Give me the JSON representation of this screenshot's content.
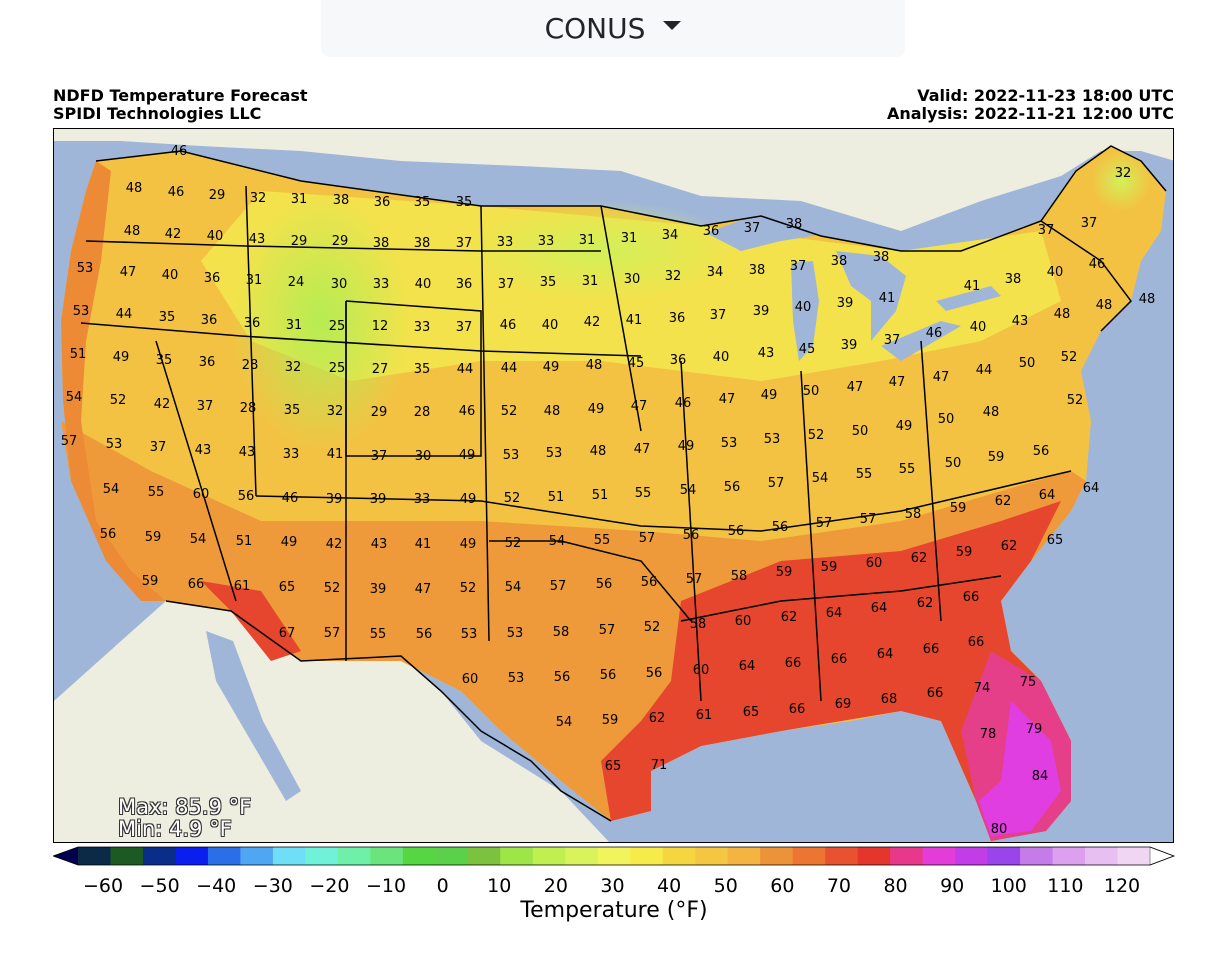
{
  "region_selector": {
    "label": "CONUS"
  },
  "header": {
    "title_line1": "NDFD Temperature Forecast",
    "title_line2": "SPIDI Technologies LLC",
    "valid": "Valid: 2022-11-23 18:00 UTC",
    "analysis": "Analysis: 2022-11-21 12:00 UTC"
  },
  "stats": {
    "max": "Max: 85.9 °F",
    "min": "Min: 4.9 °F"
  },
  "colorbar": {
    "label": "Temperature (°F)",
    "ticks": [
      "−60",
      "−50",
      "−40",
      "−30",
      "−20",
      "−10",
      "0",
      "10",
      "20",
      "30",
      "40",
      "50",
      "60",
      "70",
      "80",
      "90",
      "100",
      "110",
      "120"
    ],
    "colors": [
      "#00004c",
      "#0a2a48",
      "#1d5a23",
      "#0b2d8a",
      "#0a1ef0",
      "#2b6fe8",
      "#4fa6f2",
      "#6fdff8",
      "#6ff2d7",
      "#6ff0a9",
      "#6be47d",
      "#55d642",
      "#5bd04a",
      "#7cc23e",
      "#9ee647",
      "#bff050",
      "#d9f35a",
      "#f2f45e",
      "#f7eb4a",
      "#f5d63f",
      "#f4c641",
      "#f3b442",
      "#ec9238",
      "#ec7531",
      "#e85230",
      "#e5362c",
      "#e8388c",
      "#e43cd8",
      "#c23ce7",
      "#9a44ec",
      "#c67ce8",
      "#dda0ee",
      "#e8bff2",
      "#f1d6f4",
      "#ffffff"
    ]
  },
  "map": {
    "temperature_labels": [
      [
        "46",
        178,
        150
      ],
      [
        "48",
        133,
        187
      ],
      [
        "46",
        175,
        191
      ],
      [
        "29",
        216,
        194
      ],
      [
        "32",
        257,
        197
      ],
      [
        "31",
        298,
        198
      ],
      [
        "38",
        340,
        199
      ],
      [
        "36",
        381,
        201
      ],
      [
        "35",
        421,
        201
      ],
      [
        "35",
        463,
        201
      ],
      [
        "48",
        131,
        230
      ],
      [
        "42",
        172,
        233
      ],
      [
        "40",
        214,
        235
      ],
      [
        "43",
        256,
        238
      ],
      [
        "29",
        298,
        240
      ],
      [
        "29",
        339,
        240
      ],
      [
        "38",
        380,
        242
      ],
      [
        "38",
        421,
        242
      ],
      [
        "37",
        463,
        242
      ],
      [
        "33",
        504,
        241
      ],
      [
        "33",
        545,
        240
      ],
      [
        "31",
        586,
        239
      ],
      [
        "31",
        628,
        237
      ],
      [
        "34",
        669,
        234
      ],
      [
        "36",
        710,
        230
      ],
      [
        "37",
        751,
        227
      ],
      [
        "38",
        793,
        223
      ],
      [
        "37",
        1045,
        229
      ],
      [
        "37",
        1088,
        222
      ],
      [
        "32",
        1122,
        172
      ],
      [
        "53",
        84,
        267
      ],
      [
        "47",
        127,
        271
      ],
      [
        "40",
        169,
        274
      ],
      [
        "36",
        211,
        277
      ],
      [
        "31",
        253,
        279
      ],
      [
        "24",
        295,
        281
      ],
      [
        "30",
        338,
        283
      ],
      [
        "33",
        380,
        283
      ],
      [
        "40",
        422,
        283
      ],
      [
        "36",
        463,
        283
      ],
      [
        "37",
        505,
        283
      ],
      [
        "35",
        547,
        281
      ],
      [
        "31",
        589,
        280
      ],
      [
        "30",
        631,
        278
      ],
      [
        "32",
        672,
        275
      ],
      [
        "34",
        714,
        271
      ],
      [
        "38",
        756,
        269
      ],
      [
        "37",
        797,
        265
      ],
      [
        "38",
        838,
        260
      ],
      [
        "38",
        880,
        256
      ],
      [
        "41",
        971,
        285
      ],
      [
        "38",
        1012,
        278
      ],
      [
        "40",
        1054,
        271
      ],
      [
        "46",
        1096,
        263
      ],
      [
        "48",
        1146,
        298
      ],
      [
        "53",
        80,
        310
      ],
      [
        "44",
        123,
        313
      ],
      [
        "35",
        166,
        316
      ],
      [
        "36",
        208,
        319
      ],
      [
        "36",
        251,
        322
      ],
      [
        "31",
        293,
        324
      ],
      [
        "25",
        336,
        325
      ],
      [
        "12",
        379,
        325
      ],
      [
        "33",
        421,
        326
      ],
      [
        "37",
        463,
        326
      ],
      [
        "46",
        507,
        324
      ],
      [
        "40",
        549,
        324
      ],
      [
        "42",
        591,
        321
      ],
      [
        "41",
        633,
        319
      ],
      [
        "36",
        676,
        317
      ],
      [
        "37",
        717,
        314
      ],
      [
        "39",
        760,
        310
      ],
      [
        "40",
        802,
        306
      ],
      [
        "39",
        844,
        302
      ],
      [
        "41",
        886,
        297
      ],
      [
        "40",
        977,
        326
      ],
      [
        "43",
        1019,
        320
      ],
      [
        "48",
        1061,
        313
      ],
      [
        "48",
        1103,
        304
      ],
      [
        "51",
        77,
        353
      ],
      [
        "49",
        120,
        356
      ],
      [
        "35",
        163,
        359
      ],
      [
        "36",
        206,
        361
      ],
      [
        "28",
        249,
        364
      ],
      [
        "32",
        292,
        366
      ],
      [
        "25",
        336,
        367
      ],
      [
        "27",
        379,
        368
      ],
      [
        "35",
        421,
        368
      ],
      [
        "44",
        464,
        368
      ],
      [
        "44",
        508,
        367
      ],
      [
        "49",
        550,
        366
      ],
      [
        "48",
        593,
        364
      ],
      [
        "45",
        635,
        362
      ],
      [
        "36",
        677,
        359
      ],
      [
        "40",
        720,
        356
      ],
      [
        "43",
        765,
        352
      ],
      [
        "45",
        806,
        348
      ],
      [
        "39",
        848,
        344
      ],
      [
        "37",
        891,
        339
      ],
      [
        "46",
        933,
        332
      ],
      [
        "44",
        983,
        369
      ],
      [
        "50",
        1026,
        362
      ],
      [
        "52",
        1068,
        356
      ],
      [
        "54",
        73,
        396
      ],
      [
        "52",
        117,
        399
      ],
      [
        "42",
        161,
        403
      ],
      [
        "37",
        204,
        405
      ],
      [
        "28",
        247,
        407
      ],
      [
        "35",
        291,
        409
      ],
      [
        "32",
        334,
        410
      ],
      [
        "29",
        378,
        411
      ],
      [
        "28",
        421,
        411
      ],
      [
        "46",
        466,
        410
      ],
      [
        "52",
        508,
        410
      ],
      [
        "48",
        551,
        410
      ],
      [
        "49",
        595,
        408
      ],
      [
        "47",
        638,
        405
      ],
      [
        "46",
        682,
        402
      ],
      [
        "47",
        726,
        398
      ],
      [
        "49",
        768,
        394
      ],
      [
        "50",
        810,
        390
      ],
      [
        "47",
        854,
        386
      ],
      [
        "47",
        896,
        381
      ],
      [
        "47",
        940,
        376
      ],
      [
        "50",
        945,
        418
      ],
      [
        "48",
        990,
        411
      ],
      [
        "52",
        1074,
        399
      ],
      [
        "57",
        68,
        440
      ],
      [
        "53",
        113,
        443
      ],
      [
        "37",
        157,
        446
      ],
      [
        "43",
        202,
        449
      ],
      [
        "43",
        246,
        451
      ],
      [
        "33",
        290,
        453
      ],
      [
        "41",
        334,
        453
      ],
      [
        "37",
        378,
        455
      ],
      [
        "30",
        422,
        455
      ],
      [
        "49",
        466,
        454
      ],
      [
        "53",
        510,
        454
      ],
      [
        "53",
        553,
        452
      ],
      [
        "48",
        597,
        450
      ],
      [
        "47",
        641,
        448
      ],
      [
        "49",
        685,
        445
      ],
      [
        "53",
        728,
        442
      ],
      [
        "53",
        771,
        438
      ],
      [
        "52",
        815,
        434
      ],
      [
        "50",
        859,
        430
      ],
      [
        "49",
        903,
        425
      ],
      [
        "50",
        952,
        462
      ],
      [
        "59",
        995,
        456
      ],
      [
        "56",
        1040,
        450
      ],
      [
        "54",
        110,
        488
      ],
      [
        "55",
        155,
        491
      ],
      [
        "60",
        200,
        493
      ],
      [
        "56",
        245,
        495
      ],
      [
        "46",
        289,
        497
      ],
      [
        "39",
        333,
        498
      ],
      [
        "39",
        377,
        498
      ],
      [
        "33",
        421,
        498
      ],
      [
        "49",
        467,
        498
      ],
      [
        "52",
        511,
        497
      ],
      [
        "51",
        555,
        496
      ],
      [
        "51",
        599,
        494
      ],
      [
        "55",
        642,
        492
      ],
      [
        "54",
        687,
        489
      ],
      [
        "56",
        731,
        486
      ],
      [
        "57",
        775,
        482
      ],
      [
        "54",
        819,
        477
      ],
      [
        "55",
        863,
        473
      ],
      [
        "55",
        906,
        468
      ],
      [
        "59",
        957,
        507
      ],
      [
        "62",
        1002,
        500
      ],
      [
        "64",
        1046,
        494
      ],
      [
        "64",
        1090,
        487
      ],
      [
        "56",
        107,
        533
      ],
      [
        "59",
        152,
        536
      ],
      [
        "54",
        197,
        538
      ],
      [
        "51",
        243,
        540
      ],
      [
        "49",
        288,
        541
      ],
      [
        "42",
        333,
        543
      ],
      [
        "43",
        378,
        543
      ],
      [
        "41",
        422,
        543
      ],
      [
        "49",
        467,
        543
      ],
      [
        "52",
        512,
        542
      ],
      [
        "54",
        556,
        540
      ],
      [
        "55",
        601,
        539
      ],
      [
        "57",
        646,
        537
      ],
      [
        "56",
        690,
        534
      ],
      [
        "56",
        735,
        530
      ],
      [
        "56",
        779,
        526
      ],
      [
        "57",
        823,
        522
      ],
      [
        "57",
        867,
        518
      ],
      [
        "58",
        912,
        513
      ],
      [
        "59",
        963,
        551
      ],
      [
        "62",
        1008,
        545
      ],
      [
        "65",
        1054,
        539
      ],
      [
        "59",
        149,
        580
      ],
      [
        "66",
        195,
        583
      ],
      [
        "61",
        241,
        585
      ],
      [
        "65",
        286,
        586
      ],
      [
        "52",
        331,
        587
      ],
      [
        "39",
        377,
        588
      ],
      [
        "47",
        422,
        588
      ],
      [
        "52",
        467,
        587
      ],
      [
        "54",
        512,
        586
      ],
      [
        "57",
        557,
        585
      ],
      [
        "56",
        603,
        583
      ],
      [
        "56",
        648,
        581
      ],
      [
        "57",
        693,
        578
      ],
      [
        "58",
        738,
        575
      ],
      [
        "59",
        783,
        571
      ],
      [
        "59",
        828,
        566
      ],
      [
        "60",
        873,
        562
      ],
      [
        "62",
        918,
        557
      ],
      [
        "66",
        970,
        596
      ],
      [
        "67",
        286,
        632
      ],
      [
        "57",
        331,
        632
      ],
      [
        "55",
        377,
        633
      ],
      [
        "56",
        423,
        633
      ],
      [
        "53",
        468,
        633
      ],
      [
        "53",
        514,
        632
      ],
      [
        "58",
        560,
        631
      ],
      [
        "57",
        606,
        629
      ],
      [
        "52",
        651,
        626
      ],
      [
        "58",
        697,
        623
      ],
      [
        "60",
        742,
        620
      ],
      [
        "62",
        788,
        616
      ],
      [
        "64",
        833,
        612
      ],
      [
        "64",
        878,
        607
      ],
      [
        "62",
        924,
        602
      ],
      [
        "66",
        975,
        641
      ],
      [
        "60",
        469,
        678
      ],
      [
        "53",
        515,
        677
      ],
      [
        "56",
        561,
        676
      ],
      [
        "56",
        607,
        674
      ],
      [
        "56",
        653,
        672
      ],
      [
        "60",
        700,
        669
      ],
      [
        "64",
        746,
        665
      ],
      [
        "66",
        792,
        662
      ],
      [
        "66",
        838,
        658
      ],
      [
        "64",
        884,
        653
      ],
      [
        "66",
        930,
        648
      ],
      [
        "75",
        1027,
        681
      ],
      [
        "54",
        563,
        721
      ],
      [
        "59",
        609,
        719
      ],
      [
        "62",
        656,
        717
      ],
      [
        "61",
        703,
        714
      ],
      [
        "65",
        750,
        711
      ],
      [
        "66",
        796,
        708
      ],
      [
        "69",
        842,
        703
      ],
      [
        "68",
        888,
        698
      ],
      [
        "66",
        934,
        692
      ],
      [
        "74",
        981,
        687
      ],
      [
        "79",
        1033,
        728
      ],
      [
        "65",
        612,
        765
      ],
      [
        "71",
        658,
        764
      ],
      [
        "78",
        987,
        733
      ],
      [
        "84",
        1039,
        775
      ],
      [
        "80",
        998,
        828
      ]
    ]
  }
}
